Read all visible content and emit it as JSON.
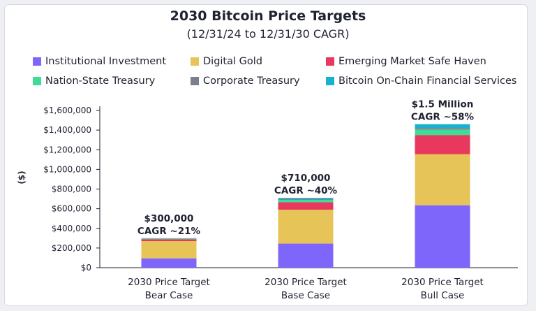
{
  "chart_data": {
    "type": "bar",
    "stacked": true,
    "title": "2030 Bitcoin Price Targets",
    "subtitle": "(12/31/24 to 12/31/30 CAGR)",
    "ylabel": "($)",
    "xlabel": "",
    "ylim": [
      0,
      1600000
    ],
    "yticks": [
      "$0",
      "$200,000",
      "$400,000",
      "$600,000",
      "$800,000",
      "$1,000,000",
      "$1,200,000",
      "$1,400,000",
      "$1,600,000"
    ],
    "grid": false,
    "legend_position": "top",
    "categories": [
      [
        "2030 Price Target",
        "Bear Case"
      ],
      [
        "2030 Price Target",
        "Base Case"
      ],
      [
        "2030 Price Target",
        "Bull Case"
      ]
    ],
    "series": [
      {
        "name": "Institutional Investment",
        "color": "#7f66fb",
        "values": [
          95000,
          245000,
          635000
        ]
      },
      {
        "name": "Digital Gold",
        "color": "#e6c458",
        "values": [
          175000,
          345000,
          520000
        ]
      },
      {
        "name": "Emerging Market Safe Haven",
        "color": "#e8385d",
        "values": [
          20000,
          75000,
          195000
        ]
      },
      {
        "name": "Nation-State Treasury",
        "color": "#3ddc97",
        "values": [
          5000,
          25000,
          55000
        ]
      },
      {
        "name": "Corporate Treasury",
        "color": "#7a7f8c",
        "values": [
          2000,
          7000,
          15000
        ]
      },
      {
        "name": "Bitcoin On-Chain Financial Services",
        "color": "#1ab0cf",
        "values": [
          3000,
          13000,
          40000
        ]
      }
    ],
    "annotations": [
      {
        "line1": "$300,000",
        "line2": "CAGR ~21%"
      },
      {
        "line1": "$710,000",
        "line2": "CAGR ~40%"
      },
      {
        "line1": "$1.5 Million",
        "line2": "CAGR ~58%"
      }
    ]
  }
}
